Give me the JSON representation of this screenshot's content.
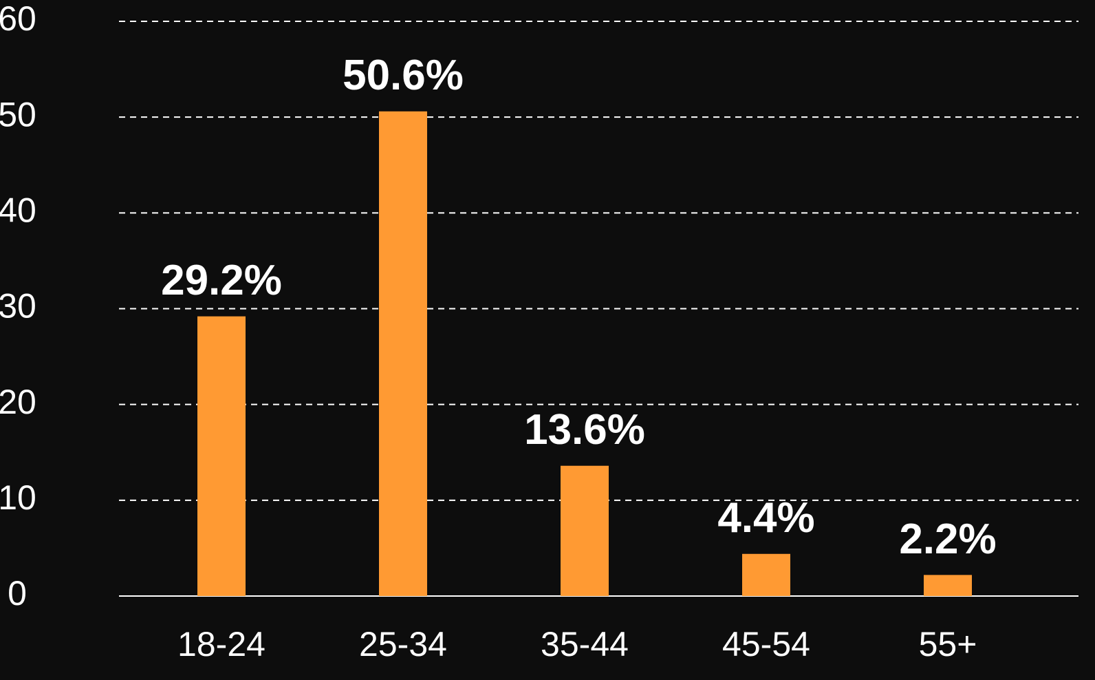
{
  "chart_data": {
    "type": "bar",
    "categories": [
      "18-24",
      "25-34",
      "35-44",
      "45-54",
      "55+"
    ],
    "values": [
      29.2,
      50.6,
      13.6,
      4.4,
      2.2
    ],
    "value_labels": [
      "29.2%",
      "50.6%",
      "13.6%",
      "4.4%",
      "2.2%"
    ],
    "color": "#ff9a33",
    "ylim": [
      0,
      60
    ],
    "yticks": [
      0,
      10,
      20,
      30,
      40,
      50,
      60
    ],
    "grid": true
  }
}
